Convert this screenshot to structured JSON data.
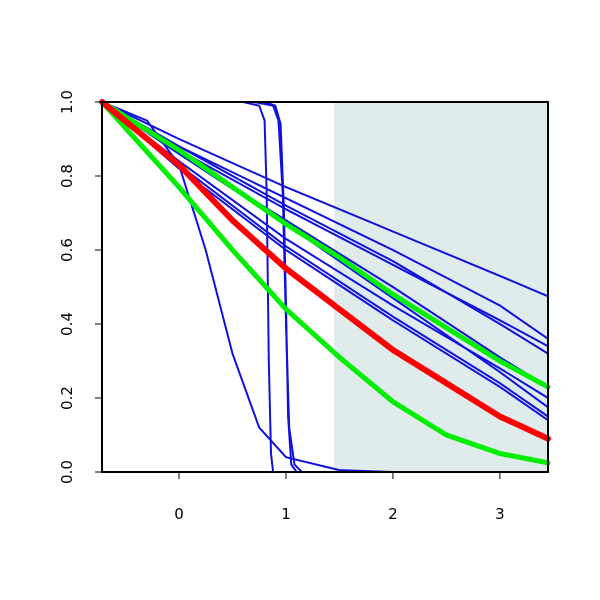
{
  "chart_data": {
    "type": "line",
    "title": "",
    "xlabel": "",
    "ylabel": "",
    "xlim": [
      -0.72,
      3.45
    ],
    "ylim": [
      0.0,
      1.0
    ],
    "grid": false,
    "x_ticks": [
      0,
      1,
      2,
      3
    ],
    "y_ticks": [
      0.0,
      0.2,
      0.4,
      0.6,
      0.8,
      1.0
    ],
    "x_tick_labels": [
      "0",
      "1",
      "2",
      "3"
    ],
    "y_tick_labels": [
      "0.0",
      "0.2",
      "0.4",
      "0.6",
      "0.8",
      "1.0"
    ],
    "shaded_region": {
      "x_start": 1.45,
      "x_end": 3.45,
      "color": "#e0ecec"
    },
    "colors": {
      "blue": "#1111dd",
      "red": "#ff0000",
      "green": "#00ee00"
    },
    "series": [
      {
        "color": "#1111dd",
        "width": 2,
        "x": [
          -0.72,
          0.0,
          1.0,
          2.0,
          3.0,
          3.45
        ],
        "y": [
          1.0,
          0.86,
          0.67,
          0.47,
          0.27,
          0.175
        ]
      },
      {
        "color": "#1111dd",
        "width": 2,
        "x": [
          -0.72,
          0.0,
          1.0,
          2.0,
          3.0,
          3.45
        ],
        "y": [
          1.0,
          0.87,
          0.71,
          0.56,
          0.41,
          0.34
        ]
      },
      {
        "color": "#1111dd",
        "width": 2,
        "x": [
          -0.72,
          0.0,
          1.0,
          2.0,
          3.0,
          3.45
        ],
        "y": [
          1.0,
          0.88,
          0.74,
          0.6,
          0.45,
          0.36
        ]
      },
      {
        "color": "#1111dd",
        "width": 2,
        "x": [
          -0.72,
          0.0,
          1.0,
          2.0,
          3.0,
          3.45
        ],
        "y": [
          1.0,
          0.9,
          0.77,
          0.65,
          0.53,
          0.475
        ]
      },
      {
        "color": "#1111dd",
        "width": 2,
        "x": [
          -0.72,
          0.0,
          1.0,
          2.0,
          3.0,
          3.45
        ],
        "y": [
          1.0,
          0.88,
          0.72,
          0.57,
          0.4,
          0.32
        ]
      },
      {
        "color": "#1111dd",
        "width": 2,
        "x": [
          -0.72,
          0.0,
          1.0,
          2.0,
          3.0,
          3.45
        ],
        "y": [
          1.0,
          0.86,
          0.68,
          0.5,
          0.31,
          0.23
        ]
      },
      {
        "color": "#1111dd",
        "width": 2,
        "x": [
          -0.72,
          0.0,
          1.0,
          2.0,
          3.0,
          3.45
        ],
        "y": [
          1.0,
          0.83,
          0.61,
          0.42,
          0.24,
          0.15
        ]
      },
      {
        "color": "#1111dd",
        "width": 2,
        "x": [
          -0.72,
          0.0,
          1.0,
          2.0,
          3.0,
          3.45
        ],
        "y": [
          1.0,
          0.82,
          0.6,
          0.41,
          0.23,
          0.14
        ]
      },
      {
        "color": "#1111dd",
        "width": 2,
        "x": [
          -0.72,
          0.0,
          1.0,
          2.0,
          3.0,
          3.45
        ],
        "y": [
          1.0,
          0.84,
          0.63,
          0.45,
          0.28,
          0.2
        ]
      },
      {
        "color": "#1111dd",
        "width": 2,
        "x": [
          -0.72,
          -0.3,
          0.0,
          0.25,
          0.5,
          0.75,
          1.0,
          1.5,
          2.0,
          3.45
        ],
        "y": [
          1.0,
          0.95,
          0.83,
          0.6,
          0.32,
          0.12,
          0.04,
          0.005,
          0.0,
          0.0
        ]
      },
      {
        "color": "#1111dd",
        "width": 2,
        "x": [
          -0.72,
          0.6,
          0.75,
          0.8,
          0.82,
          0.84,
          0.86,
          0.88,
          3.45
        ],
        "y": [
          1.0,
          1.0,
          0.99,
          0.95,
          0.75,
          0.3,
          0.05,
          0.0,
          0.0
        ]
      },
      {
        "color": "#1111dd",
        "width": 2,
        "x": [
          -0.72,
          0.7,
          0.88,
          0.93,
          0.97,
          1.0,
          1.03,
          1.08,
          1.15,
          3.45
        ],
        "y": [
          1.0,
          1.0,
          0.99,
          0.95,
          0.75,
          0.4,
          0.12,
          0.02,
          0.0,
          0.0
        ]
      },
      {
        "color": "#1111dd",
        "width": 2,
        "x": [
          -0.72,
          0.8,
          0.9,
          0.95,
          0.98,
          1.0,
          1.02,
          1.05,
          1.1,
          3.45
        ],
        "y": [
          1.0,
          1.0,
          0.99,
          0.94,
          0.72,
          0.45,
          0.15,
          0.02,
          0.0,
          0.0
        ]
      },
      {
        "color": "#00ee00",
        "width": 5,
        "x": [
          -0.72,
          0.0,
          0.5,
          1.0,
          1.5,
          2.0,
          2.5,
          3.0,
          3.45
        ],
        "y": [
          1.0,
          0.87,
          0.77,
          0.67,
          0.58,
          0.48,
          0.39,
          0.3,
          0.23
        ]
      },
      {
        "color": "#00ee00",
        "width": 5,
        "x": [
          -0.72,
          0.0,
          0.5,
          1.0,
          1.5,
          2.0,
          2.5,
          3.0,
          3.45
        ],
        "y": [
          1.0,
          0.77,
          0.6,
          0.44,
          0.31,
          0.19,
          0.1,
          0.05,
          0.025
        ]
      },
      {
        "color": "#ff0000",
        "width": 6,
        "x": [
          -0.72,
          0.0,
          0.5,
          1.0,
          1.5,
          2.0,
          2.5,
          3.0,
          3.45
        ],
        "y": [
          1.0,
          0.83,
          0.68,
          0.55,
          0.44,
          0.33,
          0.24,
          0.15,
          0.09
        ]
      }
    ]
  }
}
